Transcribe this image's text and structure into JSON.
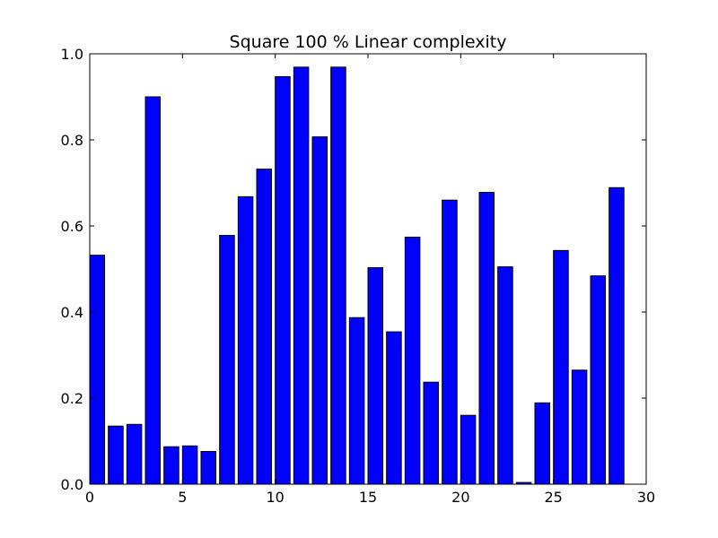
{
  "chart_data": {
    "type": "bar",
    "title": "Square 100 % Linear complexity",
    "xlabel": "",
    "ylabel": "",
    "xlim": [
      0,
      30
    ],
    "ylim": [
      0,
      1.0
    ],
    "bar_width": 0.8,
    "bar_color": "#0000ff",
    "edge_color": "#000000",
    "x": [
      0,
      1,
      2,
      3,
      4,
      5,
      6,
      7,
      8,
      9,
      10,
      11,
      12,
      13,
      14,
      15,
      16,
      17,
      18,
      19,
      20,
      21,
      22,
      23,
      24,
      25,
      26,
      27,
      28
    ],
    "values": [
      0.532,
      0.135,
      0.139,
      0.9,
      0.087,
      0.089,
      0.076,
      0.578,
      0.668,
      0.732,
      0.947,
      0.969,
      0.807,
      0.969,
      0.387,
      0.503,
      0.354,
      0.574,
      0.237,
      0.66,
      0.16,
      0.678,
      0.505,
      0.004,
      0.189,
      0.543,
      0.265,
      0.484,
      0.689
    ],
    "x_ticks": [
      0,
      5,
      10,
      15,
      20,
      25,
      30
    ],
    "x_tick_labels": [
      "0",
      "5",
      "10",
      "15",
      "20",
      "25",
      "30"
    ],
    "y_ticks": [
      0.0,
      0.2,
      0.4,
      0.6,
      0.8,
      1.0
    ],
    "y_tick_labels": [
      "0.0",
      "0.2",
      "0.4",
      "0.6",
      "0.8",
      "1.0"
    ],
    "grid": false,
    "legend": "none"
  }
}
